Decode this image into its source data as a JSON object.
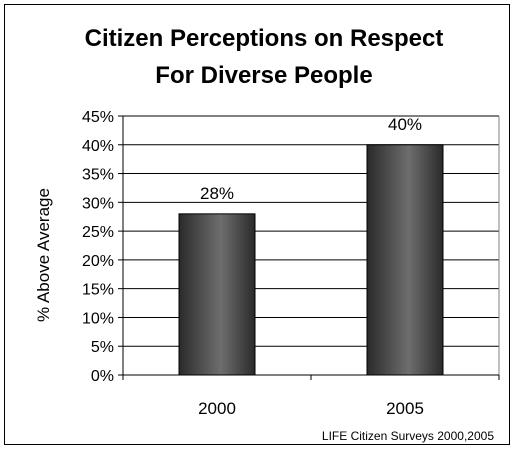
{
  "chart_data": {
    "type": "bar",
    "title_lines": [
      "Citizen Perceptions on Respect",
      "For Diverse People"
    ],
    "categories": [
      "2000",
      "2005"
    ],
    "values": [
      28,
      40
    ],
    "data_labels": [
      "28%",
      "40%"
    ],
    "ylabel": "% Above Average",
    "ylim": [
      0,
      45
    ],
    "yticks": [
      0,
      5,
      10,
      15,
      20,
      25,
      30,
      35,
      40,
      45
    ],
    "ytick_labels": [
      "0%",
      "5%",
      "10%",
      "15%",
      "20%",
      "25%",
      "30%",
      "35%",
      "40%",
      "45%"
    ],
    "grid": true,
    "legend": "none",
    "source": "LIFE Citizen Surveys 2000,2005",
    "colors": {
      "bar_dark": "#2a2a2a",
      "bar_light": "#6e6e6e",
      "frame": "#000000"
    }
  }
}
